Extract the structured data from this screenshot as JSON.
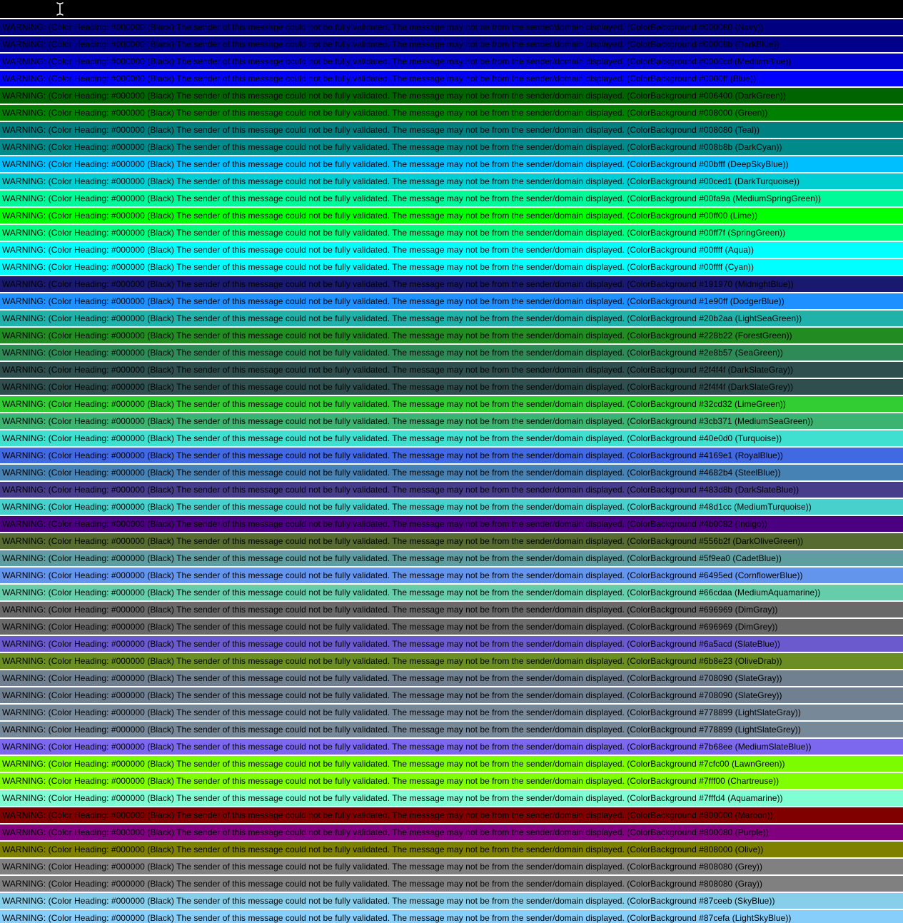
{
  "page": {
    "background_color": "#ffffff",
    "text_color": "#000000"
  },
  "editor": {
    "top_bar_color": "#000000",
    "cursor_icon": "text-cursor",
    "cursor_color": "#ffffff"
  },
  "banner": {
    "heading_hex": "#000000",
    "heading_name": "Black",
    "message_prefix": "WARNING: (Color Heading: #000000 (Black) The sender of this message could not be fully validated. The message may not be from the sender/domain displayed. (ColorBackground ",
    "rows": [
      {
        "hex": "#000080",
        "name": "Navy"
      },
      {
        "hex": "#00008b",
        "name": "DarkBlue"
      },
      {
        "hex": "#0000cd",
        "name": "MediumBlue"
      },
      {
        "hex": "#0000ff",
        "name": "Blue"
      },
      {
        "hex": "#006400",
        "name": "DarkGreen"
      },
      {
        "hex": "#008000",
        "name": "Green"
      },
      {
        "hex": "#008080",
        "name": "Teal"
      },
      {
        "hex": "#008b8b",
        "name": "DarkCyan"
      },
      {
        "hex": "#00bfff",
        "name": "DeepSkyBlue"
      },
      {
        "hex": "#00ced1",
        "name": "DarkTurquoise"
      },
      {
        "hex": "#00fa9a",
        "name": "MediumSpringGreen"
      },
      {
        "hex": "#00ff00",
        "name": "Lime"
      },
      {
        "hex": "#00ff7f",
        "name": "SpringGreen"
      },
      {
        "hex": "#00ffff",
        "name": "Aqua"
      },
      {
        "hex": "#00ffff",
        "name": "Cyan"
      },
      {
        "hex": "#191970",
        "name": "MidnightBlue"
      },
      {
        "hex": "#1e90ff",
        "name": "DodgerBlue"
      },
      {
        "hex": "#20b2aa",
        "name": "LightSeaGreen"
      },
      {
        "hex": "#228b22",
        "name": "ForestGreen"
      },
      {
        "hex": "#2e8b57",
        "name": "SeaGreen"
      },
      {
        "hex": "#2f4f4f",
        "name": "DarkSlateGray"
      },
      {
        "hex": "#2f4f4f",
        "name": "DarkSlateGrey"
      },
      {
        "hex": "#32cd32",
        "name": "LimeGreen"
      },
      {
        "hex": "#3cb371",
        "name": "MediumSeaGreen"
      },
      {
        "hex": "#40e0d0",
        "name": "Turquoise"
      },
      {
        "hex": "#4169e1",
        "name": "RoyalBlue"
      },
      {
        "hex": "#4682b4",
        "name": "SteelBlue"
      },
      {
        "hex": "#483d8b",
        "name": "DarkSlateBlue"
      },
      {
        "hex": "#48d1cc",
        "name": "MediumTurquoise"
      },
      {
        "hex": "#4b0082",
        "name": "Indigo"
      },
      {
        "hex": "#556b2f",
        "name": "DarkOliveGreen"
      },
      {
        "hex": "#5f9ea0",
        "name": "CadetBlue"
      },
      {
        "hex": "#6495ed",
        "name": "CornflowerBlue"
      },
      {
        "hex": "#66cdaa",
        "name": "MediumAquamarine"
      },
      {
        "hex": "#696969",
        "name": "DimGray"
      },
      {
        "hex": "#696969",
        "name": "DimGrey"
      },
      {
        "hex": "#6a5acd",
        "name": "SlateBlue"
      },
      {
        "hex": "#6b8e23",
        "name": "OliveDrab"
      },
      {
        "hex": "#708090",
        "name": "SlateGray"
      },
      {
        "hex": "#708090",
        "name": "SlateGrey"
      },
      {
        "hex": "#778899",
        "name": "LightSlateGray"
      },
      {
        "hex": "#778899",
        "name": "LightSlateGrey"
      },
      {
        "hex": "#7b68ee",
        "name": "MediumSlateBlue"
      },
      {
        "hex": "#7cfc00",
        "name": "LawnGreen"
      },
      {
        "hex": "#7fff00",
        "name": "Chartreuse"
      },
      {
        "hex": "#7fffd4",
        "name": "Aquamarine"
      },
      {
        "hex": "#800000",
        "name": "Maroon"
      },
      {
        "hex": "#800080",
        "name": "Purple"
      },
      {
        "hex": "#808000",
        "name": "Olive"
      },
      {
        "hex": "#808080",
        "name": "Grey"
      },
      {
        "hex": "#808080",
        "name": "Gray"
      },
      {
        "hex": "#87ceeb",
        "name": "SkyBlue"
      },
      {
        "hex": "#87cefa",
        "name": "LightSkyBlue"
      }
    ]
  }
}
